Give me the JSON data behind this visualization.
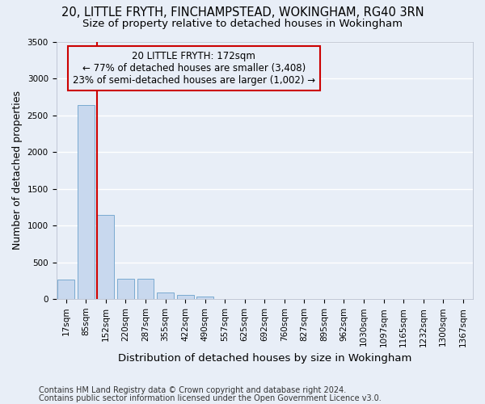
{
  "title_line1": "20, LITTLE FRYTH, FINCHAMPSTEAD, WOKINGHAM, RG40 3RN",
  "title_line2": "Size of property relative to detached houses in Wokingham",
  "xlabel": "Distribution of detached houses by size in Wokingham",
  "ylabel": "Number of detached properties",
  "footnote1": "Contains HM Land Registry data © Crown copyright and database right 2024.",
  "footnote2": "Contains public sector information licensed under the Open Government Licence v3.0.",
  "bar_labels": [
    "17sqm",
    "85sqm",
    "152sqm",
    "220sqm",
    "287sqm",
    "355sqm",
    "422sqm",
    "490sqm",
    "557sqm",
    "625sqm",
    "692sqm",
    "760sqm",
    "827sqm",
    "895sqm",
    "962sqm",
    "1030sqm",
    "1097sqm",
    "1165sqm",
    "1232sqm",
    "1300sqm",
    "1367sqm"
  ],
  "bar_values": [
    270,
    2640,
    1140,
    280,
    280,
    95,
    60,
    38,
    0,
    0,
    0,
    0,
    0,
    0,
    0,
    0,
    0,
    0,
    0,
    0,
    0
  ],
  "bar_color": "#c8d8ee",
  "bar_edgecolor": "#7aaad0",
  "vline_color": "#cc0000",
  "annotation_text_line1": "20 LITTLE FRYTH: 172sqm",
  "annotation_text_line2": "← 77% of detached houses are smaller (3,408)",
  "annotation_text_line3": "23% of semi-detached houses are larger (1,002) →",
  "annotation_box_color": "#cc0000",
  "ylim": [
    0,
    3500
  ],
  "yticks": [
    0,
    500,
    1000,
    1500,
    2000,
    2500,
    3000,
    3500
  ],
  "background_color": "#e8eef7",
  "grid_color": "#ffffff",
  "title_fontsize": 10.5,
  "subtitle_fontsize": 9.5,
  "ylabel_fontsize": 9,
  "xlabel_fontsize": 9.5,
  "tick_fontsize": 7.5,
  "annot_fontsize": 8.5,
  "footnote_fontsize": 7
}
